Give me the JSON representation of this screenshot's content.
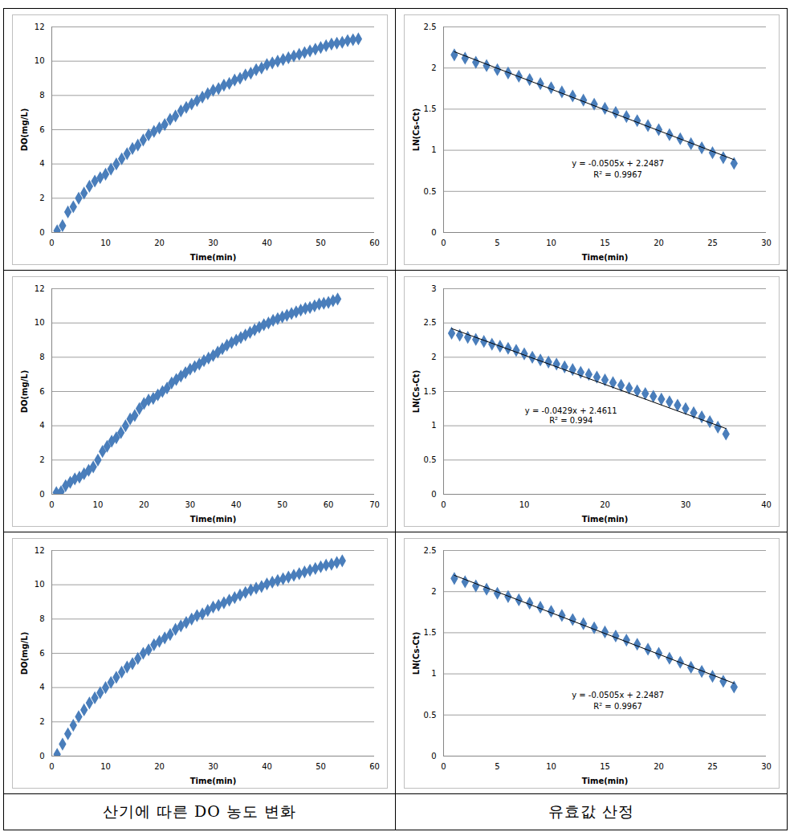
{
  "chart_data": [
    {
      "type": "scatter",
      "x_label": "Time(min)",
      "y_label": "DO(mg/L)",
      "color": "#4a7ebb",
      "marker": "diamond",
      "grid": true,
      "xlim": [
        0,
        60
      ],
      "xticks": [
        0,
        10,
        20,
        30,
        40,
        50,
        60
      ],
      "ylim": [
        0,
        12
      ],
      "yticks": [
        0,
        2,
        4,
        6,
        8,
        10,
        12
      ],
      "x": [
        1,
        2,
        3,
        4,
        5,
        6,
        7,
        8,
        9,
        10,
        11,
        12,
        13,
        14,
        15,
        16,
        17,
        18,
        19,
        20,
        21,
        22,
        23,
        24,
        25,
        26,
        27,
        28,
        29,
        30,
        31,
        32,
        33,
        34,
        35,
        36,
        37,
        38,
        39,
        40,
        41,
        42,
        43,
        44,
        45,
        46,
        47,
        48,
        49,
        50,
        51,
        52,
        53,
        54,
        55,
        56,
        57
      ],
      "values": [
        0.1,
        0.4,
        1.2,
        1.5,
        2.0,
        2.3,
        2.7,
        3.0,
        3.2,
        3.4,
        3.7,
        4.0,
        4.3,
        4.6,
        4.9,
        5.1,
        5.4,
        5.7,
        5.9,
        6.1,
        6.3,
        6.6,
        6.8,
        7.1,
        7.3,
        7.5,
        7.7,
        7.9,
        8.1,
        8.3,
        8.4,
        8.6,
        8.7,
        8.9,
        9.0,
        9.2,
        9.3,
        9.5,
        9.6,
        9.8,
        9.9,
        10.0,
        10.1,
        10.2,
        10.3,
        10.4,
        10.5,
        10.6,
        10.7,
        10.8,
        10.9,
        11.0,
        11.05,
        11.1,
        11.2,
        11.25,
        11.3
      ]
    },
    {
      "type": "scatter",
      "x_label": "Time(min)",
      "y_label": "LN(Cs-Ct)",
      "color": "#4a7ebb",
      "marker": "diamond",
      "grid": true,
      "xlim": [
        0,
        30
      ],
      "xticks": [
        0,
        5,
        10,
        15,
        20,
        25,
        30
      ],
      "ylim": [
        0,
        2.5
      ],
      "yticks": [
        0,
        0.5,
        1,
        1.5,
        2,
        2.5
      ],
      "x": [
        1,
        2,
        3,
        4,
        5,
        6,
        7,
        8,
        9,
        10,
        11,
        12,
        13,
        14,
        15,
        16,
        17,
        18,
        19,
        20,
        21,
        22,
        23,
        24,
        25,
        26,
        27
      ],
      "values": [
        2.16,
        2.12,
        2.07,
        2.03,
        1.98,
        1.94,
        1.9,
        1.86,
        1.81,
        1.76,
        1.71,
        1.66,
        1.61,
        1.56,
        1.51,
        1.46,
        1.41,
        1.36,
        1.3,
        1.25,
        1.19,
        1.14,
        1.08,
        1.03,
        0.97,
        0.91,
        0.84
      ],
      "trendline": {
        "slope": -0.0505,
        "intercept": 2.2487
      },
      "annotations": [
        {
          "text": "y = -0.0505x + 2.2487",
          "x": 16.2,
          "y": 0.84
        },
        {
          "text": "R² = 0.9967",
          "x": 16.2,
          "y": 0.7
        }
      ]
    },
    {
      "type": "scatter",
      "x_label": "Time(min)",
      "y_label": "DO(mg/L)",
      "color": "#4a7ebb",
      "marker": "diamond",
      "grid": true,
      "xlim": [
        0,
        70
      ],
      "xticks": [
        0,
        10,
        20,
        30,
        40,
        50,
        60,
        70
      ],
      "ylim": [
        0,
        12
      ],
      "yticks": [
        0,
        2,
        4,
        6,
        8,
        10,
        12
      ],
      "x": [
        1,
        2,
        3,
        4,
        5,
        6,
        7,
        8,
        9,
        10,
        11,
        12,
        13,
        14,
        15,
        16,
        17,
        18,
        19,
        20,
        21,
        22,
        23,
        24,
        25,
        26,
        27,
        28,
        29,
        30,
        31,
        32,
        33,
        34,
        35,
        36,
        37,
        38,
        39,
        40,
        41,
        42,
        43,
        44,
        45,
        46,
        47,
        48,
        49,
        50,
        51,
        52,
        53,
        54,
        55,
        56,
        57,
        58,
        59,
        60,
        61,
        62
      ],
      "values": [
        0.1,
        0.15,
        0.5,
        0.7,
        0.9,
        1.0,
        1.2,
        1.4,
        1.6,
        2.0,
        2.5,
        2.8,
        3.1,
        3.3,
        3.6,
        4.0,
        4.4,
        4.6,
        5.0,
        5.3,
        5.5,
        5.6,
        5.8,
        6.0,
        6.2,
        6.5,
        6.7,
        6.9,
        7.1,
        7.3,
        7.45,
        7.6,
        7.8,
        7.95,
        8.1,
        8.3,
        8.5,
        8.7,
        8.85,
        9.0,
        9.15,
        9.3,
        9.45,
        9.6,
        9.75,
        9.9,
        10.0,
        10.15,
        10.25,
        10.35,
        10.45,
        10.55,
        10.65,
        10.75,
        10.85,
        10.9,
        11.0,
        11.1,
        11.15,
        11.2,
        11.3,
        11.4
      ]
    },
    {
      "type": "scatter",
      "x_label": "Time(min)",
      "y_label": "LN(Cs-Ct)",
      "color": "#4a7ebb",
      "marker": "diamond",
      "grid": true,
      "xlim": [
        0,
        40
      ],
      "xticks": [
        0,
        10,
        20,
        30,
        40
      ],
      "ylim": [
        0,
        3
      ],
      "yticks": [
        0,
        0.5,
        1,
        1.5,
        2,
        2.5,
        3
      ],
      "x": [
        1,
        2,
        3,
        4,
        5,
        6,
        7,
        8,
        9,
        10,
        11,
        12,
        13,
        14,
        15,
        16,
        17,
        18,
        19,
        20,
        21,
        22,
        23,
        24,
        25,
        26,
        27,
        28,
        29,
        30,
        31,
        32,
        33,
        34,
        35
      ],
      "values": [
        2.35,
        2.32,
        2.29,
        2.26,
        2.23,
        2.19,
        2.16,
        2.13,
        2.1,
        2.05,
        2.0,
        1.96,
        1.93,
        1.9,
        1.86,
        1.82,
        1.78,
        1.75,
        1.71,
        1.67,
        1.63,
        1.59,
        1.55,
        1.51,
        1.47,
        1.43,
        1.39,
        1.35,
        1.3,
        1.25,
        1.19,
        1.13,
        1.06,
        0.98,
        0.88
      ],
      "trendline": {
        "slope": -0.0429,
        "intercept": 2.4611
      },
      "annotations": [
        {
          "text": "y = -0.0429x + 2.4611",
          "x": 15.8,
          "y": 1.21
        },
        {
          "text": "R² = 0.994",
          "x": 15.8,
          "y": 1.07
        }
      ]
    },
    {
      "type": "scatter",
      "x_label": "Time(min)",
      "y_label": "DO(mg/L)",
      "color": "#4a7ebb",
      "marker": "diamond",
      "grid": true,
      "xlim": [
        0,
        60
      ],
      "xticks": [
        0,
        10,
        20,
        30,
        40,
        50,
        60
      ],
      "ylim": [
        0,
        12
      ],
      "yticks": [
        0,
        2,
        4,
        6,
        8,
        10,
        12
      ],
      "x": [
        1,
        2,
        3,
        4,
        5,
        6,
        7,
        8,
        9,
        10,
        11,
        12,
        13,
        14,
        15,
        16,
        17,
        18,
        19,
        20,
        21,
        22,
        23,
        24,
        25,
        26,
        27,
        28,
        29,
        30,
        31,
        32,
        33,
        34,
        35,
        36,
        37,
        38,
        39,
        40,
        41,
        42,
        43,
        44,
        45,
        46,
        47,
        48,
        49,
        50,
        51,
        52,
        53,
        54
      ],
      "values": [
        0.1,
        0.7,
        1.3,
        1.8,
        2.3,
        2.7,
        3.1,
        3.4,
        3.7,
        4.0,
        4.3,
        4.6,
        4.9,
        5.2,
        5.4,
        5.7,
        6.0,
        6.2,
        6.5,
        6.7,
        6.9,
        7.1,
        7.4,
        7.6,
        7.8,
        8.0,
        8.2,
        8.3,
        8.5,
        8.7,
        8.8,
        8.95,
        9.1,
        9.25,
        9.4,
        9.55,
        9.7,
        9.8,
        9.9,
        10.05,
        10.15,
        10.25,
        10.35,
        10.45,
        10.55,
        10.65,
        10.75,
        10.85,
        10.95,
        11.05,
        11.15,
        11.2,
        11.3,
        11.4
      ]
    },
    {
      "type": "scatter",
      "x_label": "Time(min)",
      "y_label": "LN(Cs-Ct)",
      "color": "#4a7ebb",
      "marker": "diamond",
      "grid": true,
      "xlim": [
        0,
        30
      ],
      "xticks": [
        0,
        5,
        10,
        15,
        20,
        25,
        30
      ],
      "ylim": [
        0,
        2.5
      ],
      "yticks": [
        0,
        0.5,
        1,
        1.5,
        2,
        2.5
      ],
      "x": [
        1,
        2,
        3,
        4,
        5,
        6,
        7,
        8,
        9,
        10,
        11,
        12,
        13,
        14,
        15,
        16,
        17,
        18,
        19,
        20,
        21,
        22,
        23,
        24,
        25,
        26,
        27
      ],
      "values": [
        2.16,
        2.12,
        2.07,
        2.03,
        1.98,
        1.94,
        1.9,
        1.86,
        1.81,
        1.76,
        1.71,
        1.66,
        1.61,
        1.56,
        1.51,
        1.46,
        1.41,
        1.36,
        1.3,
        1.25,
        1.19,
        1.14,
        1.08,
        1.03,
        0.97,
        0.91,
        0.84
      ],
      "trendline": {
        "slope": -0.0505,
        "intercept": 2.2487
      },
      "annotations": [
        {
          "text": "y = -0.0505x + 2.2487",
          "x": 16.2,
          "y": 0.74
        },
        {
          "text": "R² = 0.9967",
          "x": 16.2,
          "y": 0.6
        }
      ]
    }
  ],
  "captions": [
    "산기에 따른 DO 농도 변화",
    "유효값 산정"
  ]
}
